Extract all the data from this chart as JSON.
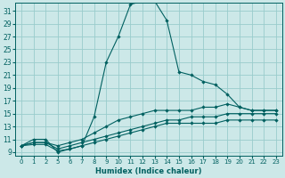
{
  "xlabel": "Humidex (Indice chaleur)",
  "bg_color": "#cce8e8",
  "grid_color": "#99cccc",
  "line_color": "#006060",
  "xtick_labels": [
    "0",
    "1",
    "2",
    "5",
    "6",
    "7",
    "8",
    "9",
    "10",
    "11",
    "12",
    "13",
    "14",
    "15",
    "16",
    "17",
    "18",
    "19",
    "20",
    "21",
    "22",
    "23"
  ],
  "ytick_labels": [
    "9",
    "11",
    "13",
    "15",
    "17",
    "19",
    "21",
    "23",
    "25",
    "27",
    "29",
    "31"
  ],
  "ytick_vals": [
    9,
    11,
    13,
    15,
    17,
    19,
    21,
    23,
    25,
    27,
    29,
    31
  ],
  "ylim": [
    8.5,
    32.2
  ],
  "line1_xi": [
    0,
    1,
    2,
    3,
    4,
    5,
    6,
    7,
    8,
    9,
    10,
    11,
    12,
    13,
    14,
    15,
    16,
    17,
    18,
    19,
    20,
    21
  ],
  "line1_y": [
    10,
    11,
    11,
    9,
    9.5,
    10,
    14.5,
    23,
    27,
    32,
    32.5,
    32.5,
    29.5,
    21.5,
    21,
    20,
    19.5,
    18,
    16,
    15.5,
    15.5,
    15.5
  ],
  "line2_xi": [
    0,
    1,
    2,
    3,
    4,
    5,
    6,
    7,
    8,
    9,
    10,
    11,
    12,
    13,
    14,
    15,
    16,
    17,
    18,
    19,
    20,
    21
  ],
  "line2_y": [
    10,
    10.5,
    10.5,
    10,
    10.5,
    11,
    12,
    13,
    14,
    14.5,
    15,
    15.5,
    15.5,
    15.5,
    15.5,
    16,
    16,
    16.5,
    16,
    15.5,
    15.5,
    15.5
  ],
  "line3_xi": [
    0,
    1,
    2,
    3,
    4,
    5,
    6,
    7,
    8,
    9,
    10,
    11,
    12,
    13,
    14,
    15,
    16,
    17,
    18,
    19,
    20,
    21
  ],
  "line3_y": [
    10,
    10.5,
    10.5,
    9.5,
    10,
    10.5,
    11,
    11.5,
    12,
    12.5,
    13,
    13.5,
    14,
    14,
    14.5,
    14.5,
    14.5,
    15,
    15,
    15,
    15,
    15
  ],
  "line4_xi": [
    0,
    1,
    2,
    3,
    4,
    5,
    6,
    7,
    8,
    9,
    10,
    11,
    12,
    13,
    14,
    15,
    16,
    17,
    18,
    19,
    20,
    21
  ],
  "line4_y": [
    10,
    10.2,
    10.2,
    9.2,
    9.5,
    10,
    10.5,
    11,
    11.5,
    12,
    12.5,
    13,
    13.5,
    13.5,
    13.5,
    13.5,
    13.5,
    14,
    14,
    14,
    14,
    14
  ]
}
